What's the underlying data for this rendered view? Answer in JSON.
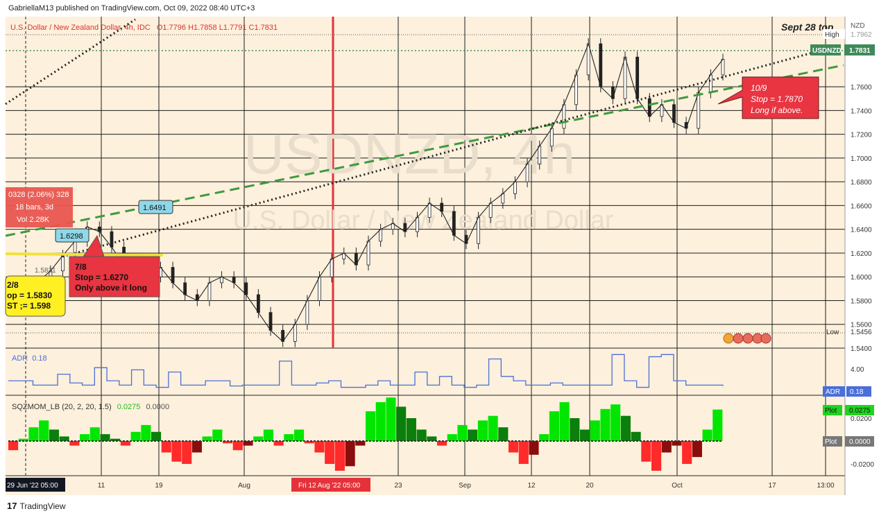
{
  "header": {
    "published": "GabriellaM13 published on TradingView.com, Oct 09, 2022 08:40 UTC+3"
  },
  "footer": {
    "brand": "TradingView"
  },
  "colors": {
    "background": "#fdf0dc",
    "grid": "#1b1b1b",
    "up": "#26a69a",
    "red_line": "#e5323a",
    "green_dash": "#3e9a3e",
    "adr_line": "#4a6fd8",
    "mom_pos_bright": "#00e600",
    "mom_pos_dark": "#0b7f0b",
    "mom_neg_bright": "#ff2a2a",
    "mom_neg_dark": "#8a0d0d",
    "callout_red": "#e83541",
    "callout_yellow": "#fff023",
    "label_green": "#3f8a5a"
  },
  "chart_data": {
    "type": "line",
    "title": "U.S. Dollar / New Zealand Dollar, 4h, IDC",
    "ohlc_text": "O1.7796 H1.7858 L1.7791 C1.7831",
    "watermark_symbol": "USDNZD, 4h",
    "watermark_name": "U.S. Dollar / New Zealand Dollar",
    "currency": "NZD",
    "ylim": [
      1.54,
      1.798
    ],
    "y_ticks": [
      "1.7600",
      "1.7400",
      "1.7200",
      "1.7000",
      "1.6800",
      "1.6600",
      "1.6400",
      "1.6200",
      "1.6000",
      "1.5800",
      "1.5600",
      "1.5400"
    ],
    "y_tick_values": [
      1.76,
      1.74,
      1.72,
      1.7,
      1.68,
      1.66,
      1.64,
      1.62,
      1.6,
      1.58,
      1.56,
      1.54
    ],
    "x_ticks": [
      "29 Jun '22  05:00",
      "11",
      "19",
      "Aug",
      "Fri 12 Aug '22  05:00",
      "23",
      "Sep",
      "12",
      "20",
      "Oct",
      "17",
      "13:00"
    ],
    "price_labels": {
      "high_label": "High",
      "high_value": "1.7962",
      "current_label": "USDNZD",
      "current_value": "1.7831",
      "low_label": "Low",
      "low_value": "1.5456"
    },
    "series": [
      {
        "name": "USDNZD",
        "values": [
          1.584,
          1.588,
          1.596,
          1.605,
          1.618,
          1.63,
          1.642,
          1.638,
          1.625,
          1.61,
          1.605,
          1.6,
          1.608,
          1.595,
          1.585,
          1.58,
          1.595,
          1.6,
          1.595,
          1.585,
          1.57,
          1.555,
          1.5456,
          1.56,
          1.58,
          1.6,
          1.615,
          1.62,
          1.61,
          1.63,
          1.64,
          1.645,
          1.638,
          1.65,
          1.662,
          1.655,
          1.635,
          1.628,
          1.65,
          1.662,
          1.67,
          1.68,
          1.695,
          1.71,
          1.725,
          1.745,
          1.77,
          1.7962,
          1.76,
          1.75,
          1.785,
          1.75,
          1.735,
          1.745,
          1.73,
          1.725,
          1.755,
          1.77,
          1.7831
        ]
      }
    ],
    "annotations": {
      "top_right": "Sept 28 top",
      "callout_10_9": [
        "10/9",
        "Stop = 1.7870",
        "Long if above."
      ],
      "callout_7_8": [
        "7/8",
        "Stop = 1.6270",
        "Only above it long"
      ],
      "callout_2_8": [
        "2/8",
        "op = 1.5830",
        "ST ;= 1.598"
      ],
      "measure_box": [
        "0328 (2.06%) 328",
        "18 bars, 3d",
        "Vol 2.28K"
      ],
      "label_1": "1.6491",
      "label_2": "1.6298",
      "label_3": "1.5831"
    },
    "adr": {
      "title": "ADR",
      "value": "0.18",
      "tick": "4.00",
      "badge": "ADR",
      "badge_value": "0.18",
      "values": [
        0.3,
        0.3,
        0.2,
        0.2,
        0.45,
        0.25,
        0.2,
        0.6,
        0.3,
        0.2,
        0.55,
        0.2,
        0.15,
        0.5,
        0.2,
        0.2,
        0.3,
        0.3,
        0.18,
        0.2,
        0.2,
        0.2,
        0.75,
        0.2,
        0.2,
        0.25,
        0.3,
        0.15,
        0.15,
        0.2,
        0.3,
        0.2,
        0.2,
        0.5,
        0.2,
        0.4,
        0.2,
        0.15,
        0.2,
        0.8,
        0.4,
        0.3,
        0.2,
        0.2,
        0.25,
        0.2,
        0.2,
        0.2,
        0.2,
        0.9,
        0.3,
        0.15,
        0.85,
        0.9,
        0.3,
        0.2,
        0.2,
        0.2,
        0.18
      ]
    },
    "sqzmom": {
      "title": "SQZMOM_LB (20, 2, 20, 1.5)",
      "value": "0.0275",
      "value2": "0.0000",
      "ticks": [
        "0.0200",
        "-0.0200"
      ],
      "tick_values": [
        0.02,
        -0.02
      ],
      "badge1": "Plot",
      "badge1_value": "0.0275",
      "badge2": "Plot",
      "badge2_value": "0.0000",
      "values": [
        -0.008,
        0.002,
        0.012,
        0.018,
        0.01,
        0.004,
        -0.004,
        0.006,
        0.012,
        0.006,
        0.002,
        -0.004,
        0.008,
        0.014,
        0.008,
        -0.01,
        -0.018,
        -0.02,
        -0.01,
        0.004,
        0.01,
        -0.002,
        -0.008,
        -0.004,
        0.004,
        0.01,
        -0.004,
        0.006,
        0.01,
        -0.002,
        -0.01,
        -0.02,
        -0.026,
        -0.022,
        -0.004,
        0.026,
        0.034,
        0.038,
        0.03,
        0.02,
        0.01,
        0.004,
        -0.004,
        0.006,
        0.014,
        0.01,
        0.018,
        0.022,
        0.012,
        -0.01,
        -0.02,
        -0.012,
        0.006,
        0.026,
        0.034,
        0.02,
        0.01,
        0.018,
        0.028,
        0.032,
        0.022,
        0.008,
        -0.018,
        -0.026,
        -0.01,
        -0.004,
        -0.02,
        -0.014,
        0.01,
        0.0275
      ]
    }
  }
}
